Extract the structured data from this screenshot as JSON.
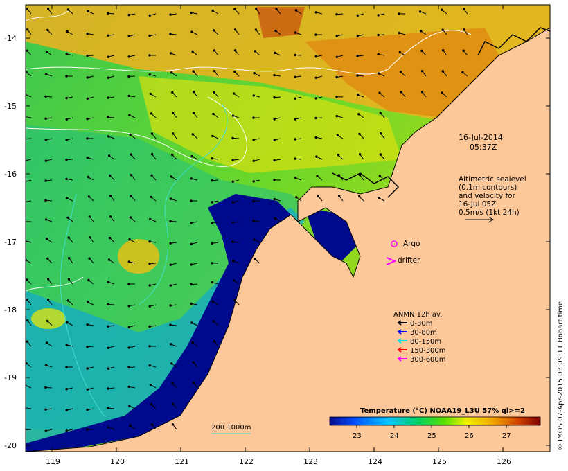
{
  "map": {
    "date_line1": "16-Jul-2014",
    "date_line2": "05:37Z",
    "altimetry_lines": [
      "Altimetric sealevel",
      "(0.1m contours)",
      "and velocity for",
      "16-Jul 05Z",
      "0.5m/s (1kt 24h)"
    ],
    "argo_label": "Argo",
    "drifter_label": "drifter",
    "anmn_title": "ANMN 12h av.",
    "anmn_legend": [
      {
        "label": "0-30m",
        "color": "#000000"
      },
      {
        "label": "30-80m",
        "color": "#0000ff"
      },
      {
        "label": "80-150m",
        "color": "#00e0e0"
      },
      {
        "label": "150-300m",
        "color": "#ff0000"
      },
      {
        "label": "300-600m",
        "color": "#ff00ff"
      }
    ],
    "colorbar_title": "Temperature (°C) NOAA19_L3U 57% ql>=2",
    "colorbar_ticks": [
      "23",
      "24",
      "25",
      "26",
      "27"
    ],
    "isobath_label": "200 1000m",
    "credit": "© IMOS 07-Apr-2015 03:09:11 Hobart time",
    "lat_labels": [
      "-14",
      "-15",
      "-16",
      "-17",
      "-18",
      "-19",
      "-20"
    ],
    "lon_labels": [
      "119",
      "120",
      "121",
      "122",
      "123",
      "124",
      "125",
      "126"
    ],
    "colors": {
      "land": "#fcc89a",
      "deep_blue": "#000a8c",
      "argo": "#ff00ff",
      "isobath": "#40e0d0"
    }
  }
}
